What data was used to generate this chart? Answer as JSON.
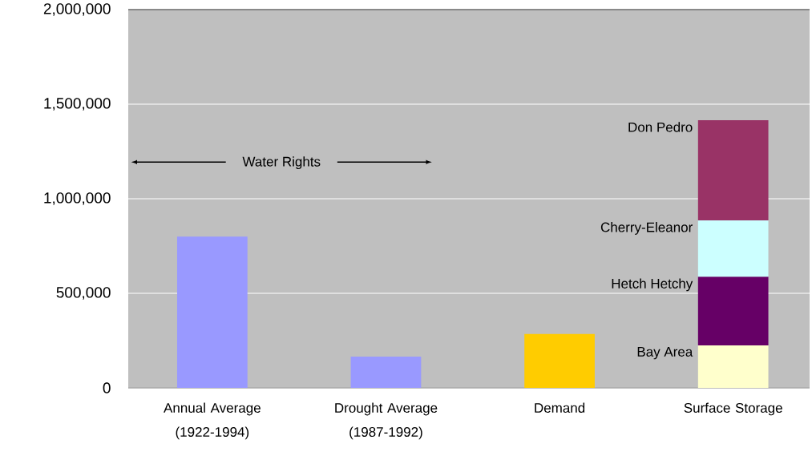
{
  "chart_data": {
    "type": "bar",
    "stacked": true,
    "categories": [
      "Annual Average (1922-1994)",
      "Drought Average (1987-1992)",
      "Demand",
      "Surface Storage"
    ],
    "series": [
      {
        "colors": [
          "#9999ff",
          "#9999ff",
          "#ffcc00",
          null
        ],
        "values": [
          800000,
          165000,
          285000,
          null
        ]
      },
      {
        "name": "Bay Area",
        "color": "#ffffcc",
        "values": [
          null,
          null,
          null,
          225000
        ]
      },
      {
        "name": "Hetch Hetchy",
        "color": "#660066",
        "values": [
          null,
          null,
          null,
          363000
        ]
      },
      {
        "name": "Cherry-Eleanor",
        "color": "#ccffff",
        "values": [
          null,
          null,
          null,
          298000
        ]
      },
      {
        "name": "Don Pedro",
        "color": "#993366",
        "values": [
          null,
          null,
          null,
          529000
        ]
      }
    ],
    "ylim": [
      0,
      2000000
    ],
    "yticks": [
      {
        "value": 0,
        "label": "0"
      },
      {
        "value": 500000,
        "label": "500,000"
      },
      {
        "value": 1000000,
        "label": "1,000,000"
      },
      {
        "value": 1500000,
        "label": "1,500,000"
      },
      {
        "value": 2000000,
        "label": "2,000,000"
      }
    ],
    "grid": "y",
    "annotations": [
      "Water Rights"
    ]
  }
}
